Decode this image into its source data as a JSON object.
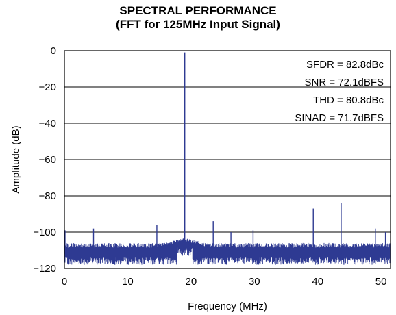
{
  "chart_data": {
    "type": "line",
    "title": "SPECTRAL PERFORMANCE",
    "subtitle": "(FFT for 125MHz Input Signal)",
    "xlabel": "Frequency (MHz)",
    "ylabel": "Amplitude (dB)",
    "xlim": [
      0,
      51.5
    ],
    "ylim": [
      -120,
      0
    ],
    "xticks": [
      "0",
      "10",
      "20",
      "30",
      "40",
      "50"
    ],
    "yticks": [
      "0",
      "−20",
      "−40",
      "−60",
      "−80",
      "−100",
      "−120"
    ],
    "grid": "horizontal",
    "line_color": "#2e3a92",
    "noise_floor_range": [
      -118,
      -106
    ],
    "fundamental": {
      "x": 19.0,
      "y": -1
    },
    "spurs": [
      {
        "x": 0.1,
        "y": -99
      },
      {
        "x": 4.6,
        "y": -98
      },
      {
        "x": 14.6,
        "y": -96
      },
      {
        "x": 23.5,
        "y": -94
      },
      {
        "x": 26.3,
        "y": -100
      },
      {
        "x": 29.8,
        "y": -99
      },
      {
        "x": 39.3,
        "y": -87
      },
      {
        "x": 43.7,
        "y": -84
      },
      {
        "x": 49.1,
        "y": -98
      },
      {
        "x": 50.7,
        "y": -100
      }
    ],
    "annotations": [
      "SFDR = 82.8dBc",
      "SNR = 72.1dBFS",
      "THD = 80.8dBc",
      "SINAD = 71.7dBFS"
    ]
  }
}
